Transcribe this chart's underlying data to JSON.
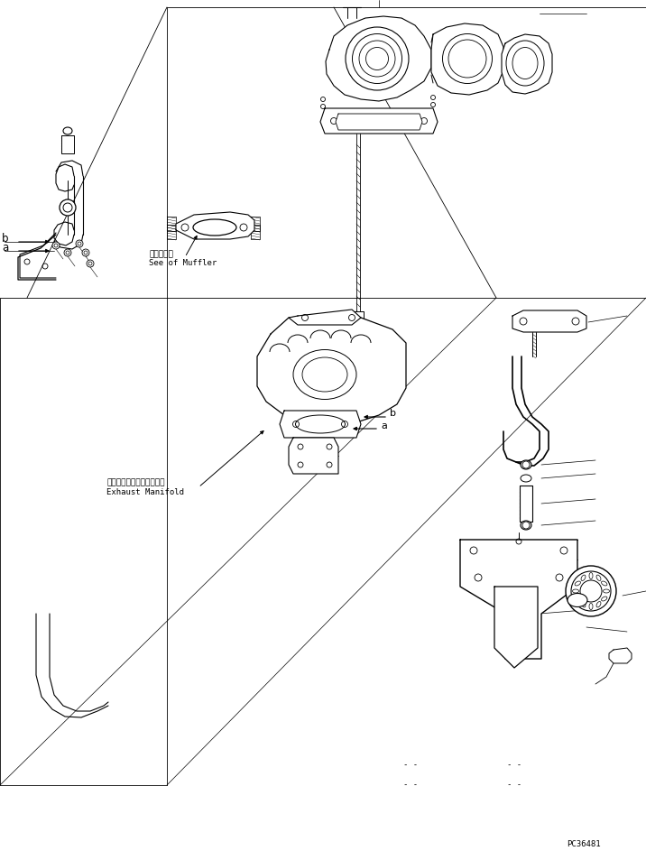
{
  "bg_color": "#ffffff",
  "line_color": "#000000",
  "fig_width": 7.16,
  "fig_height": 9.43,
  "dpi": 100,
  "part_code": "PC36481",
  "label_muffler_jp": "マフラ参照",
  "label_muffler_en": "See of Muffler",
  "label_exhaust_jp": "エキゾーストマニホールド",
  "label_exhaust_en": "Exhaust Manifold",
  "label_a": "a",
  "label_b": "b",
  "frame_lines": [
    [
      [
        0,
        330
      ],
      [
        185,
        330
      ]
    ],
    [
      [
        185,
        330
      ],
      [
        370,
        0
      ]
    ],
    [
      [
        370,
        0
      ],
      [
        716,
        0
      ]
    ],
    [
      [
        716,
        0
      ],
      [
        716,
        330
      ]
    ],
    [
      [
        185,
        330
      ],
      [
        716,
        330
      ]
    ],
    [
      [
        185,
        0
      ],
      [
        185,
        330
      ]
    ],
    [
      [
        370,
        0
      ],
      [
        370,
        330
      ]
    ]
  ]
}
